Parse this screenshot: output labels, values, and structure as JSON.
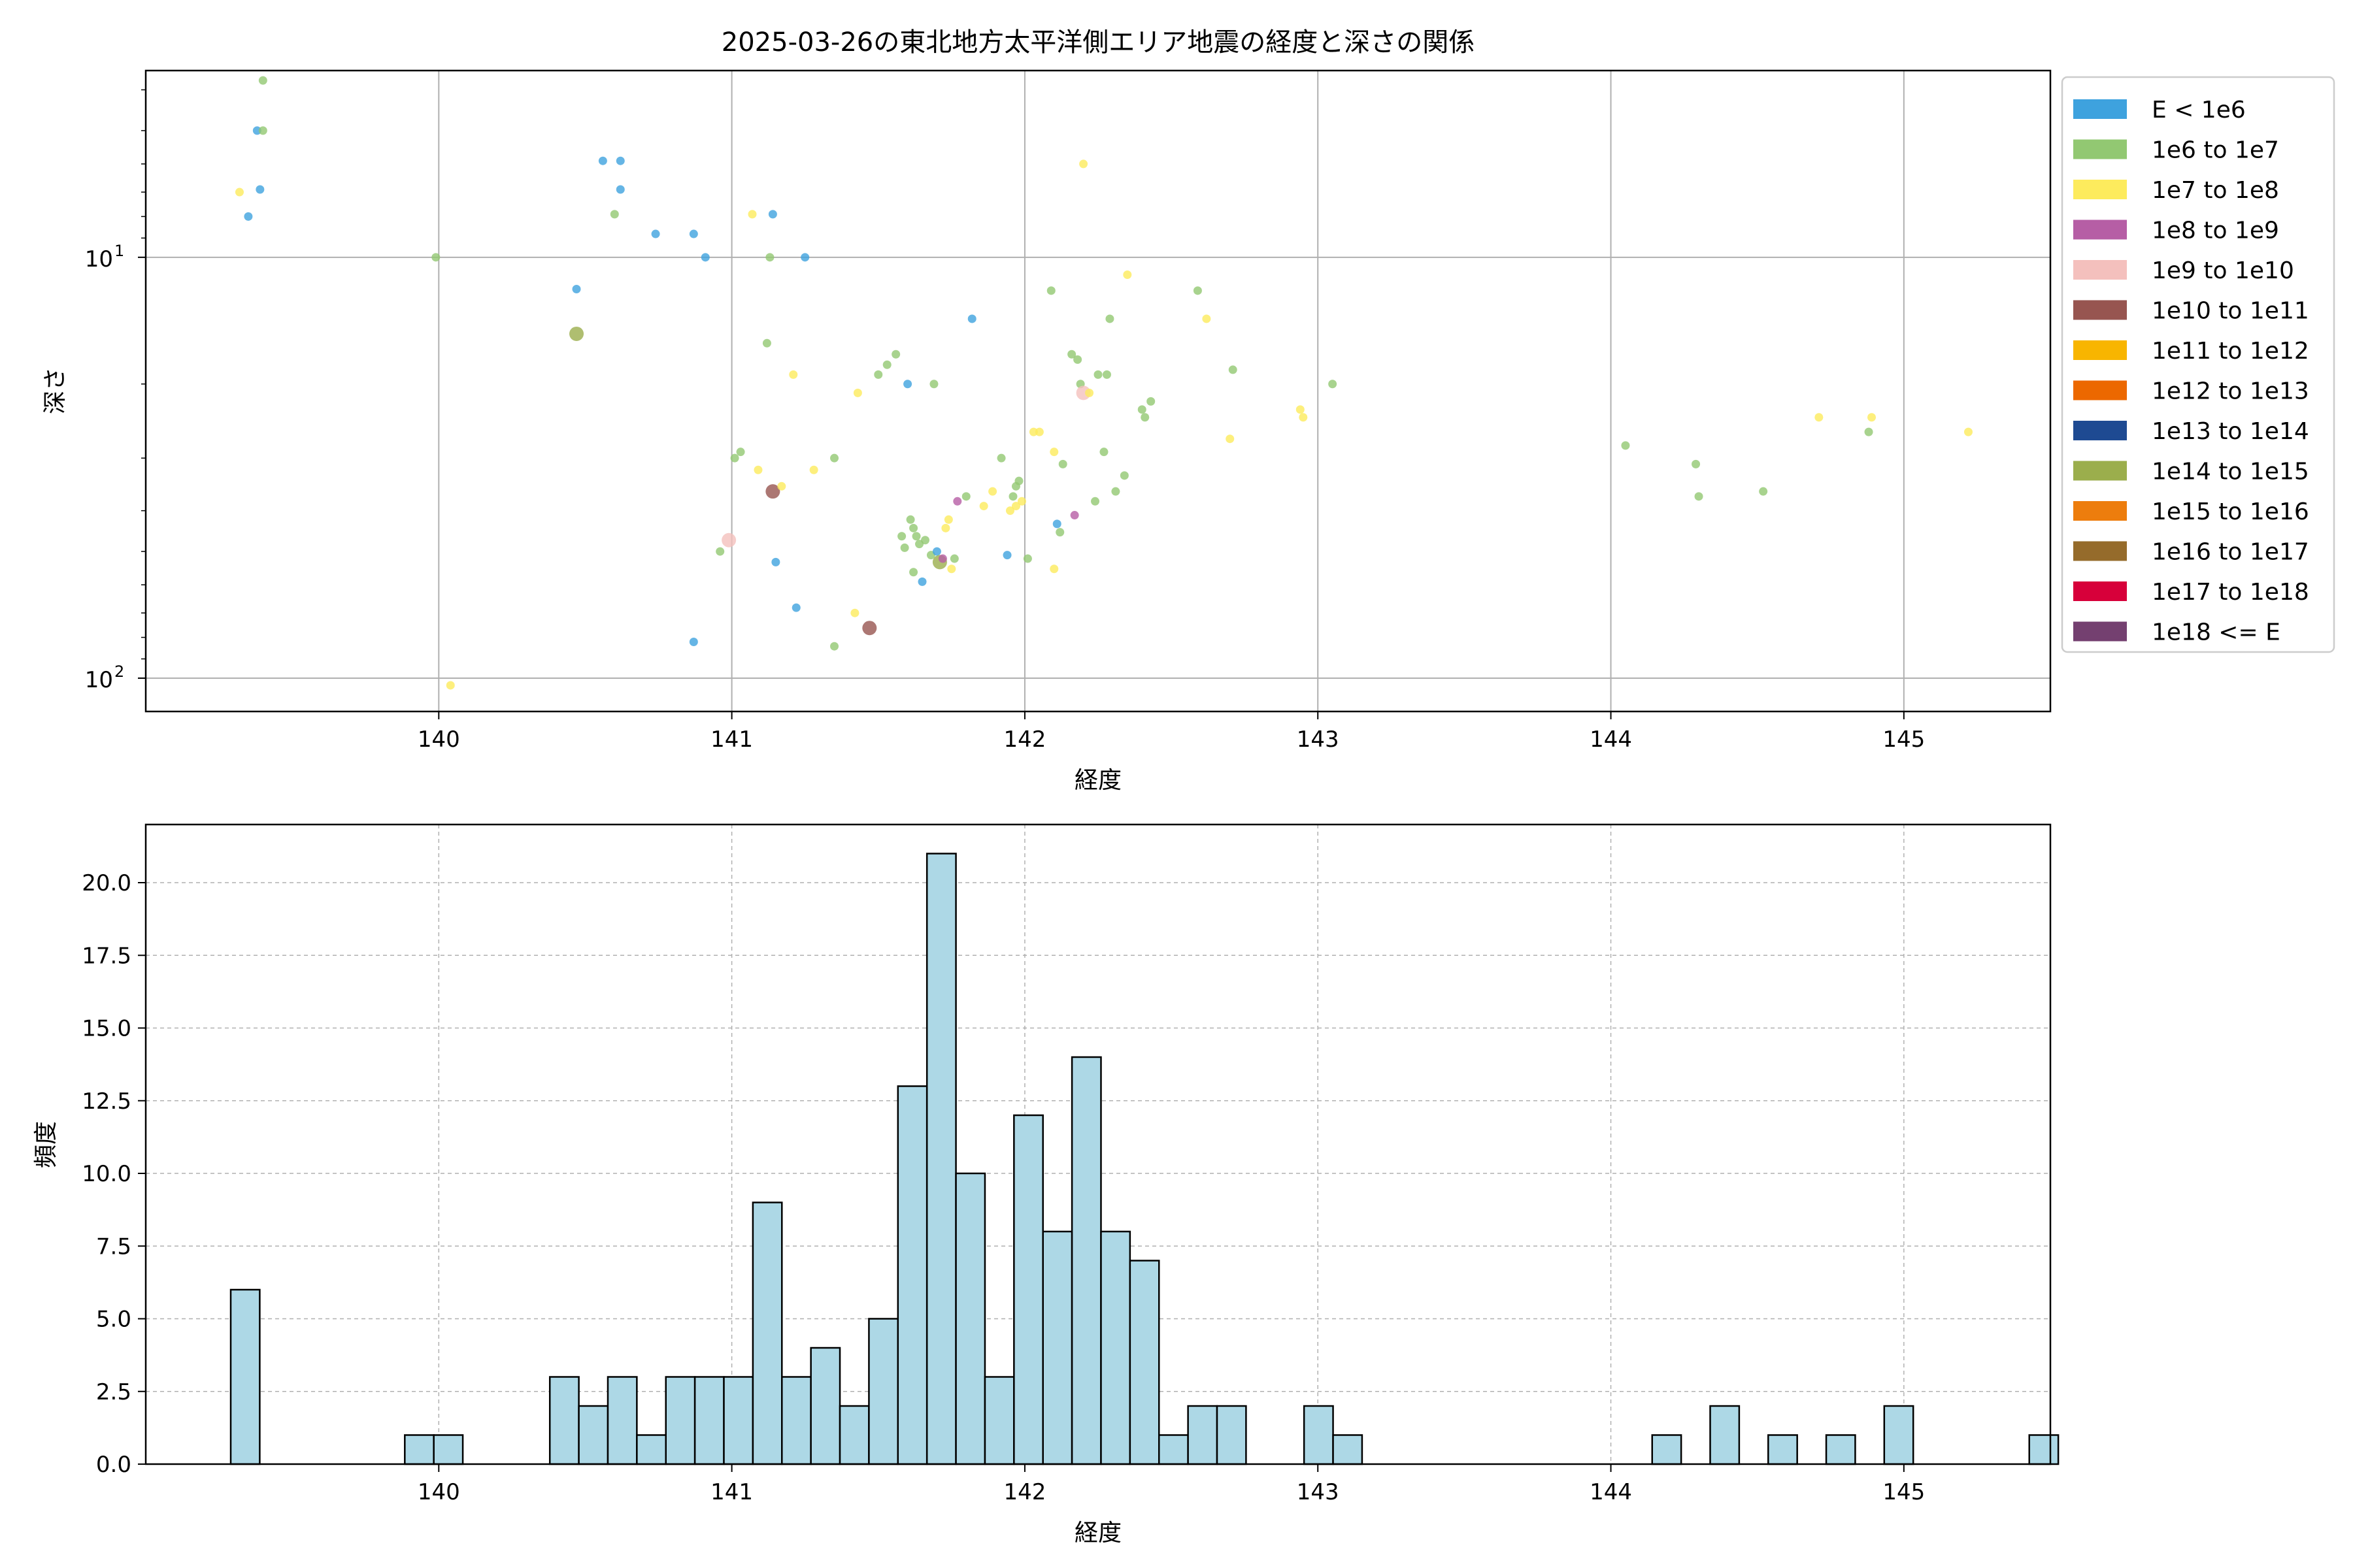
{
  "chart_data": [
    {
      "type": "scatter",
      "title": "2025-03-26の東北地方太平洋側エリア地震の経度と深さの関係",
      "xlabel": "経度",
      "ylabel": "深さ",
      "xlim": [
        139.0,
        145.5
      ],
      "ylim": [
        3.6,
        120
      ],
      "yscale": "log",
      "y_inverted": true,
      "xticks": [
        "140",
        "141",
        "142",
        "143",
        "144",
        "145"
      ],
      "yticks": [
        {
          "value": 10,
          "label": "10",
          "exp": "1"
        },
        {
          "value": 100,
          "label": "10",
          "exp": "2"
        }
      ],
      "grid": true,
      "legend_position": "right, outside top",
      "legend": [
        {
          "label": "E < 1e6",
          "color": "#3ea2de"
        },
        {
          "label": "1e6 to 1e7",
          "color": "#92c872"
        },
        {
          "label": "1e7 to 1e8",
          "color": "#fdeb5d"
        },
        {
          "label": "1e8 to 1e9",
          "color": "#b65ea5"
        },
        {
          "label": "1e9 to 1e10",
          "color": "#f4c0bd"
        },
        {
          "label": "1e10 to 1e11",
          "color": "#975550"
        },
        {
          "label": "1e11 to 1e12",
          "color": "#f8b500"
        },
        {
          "label": "1e12 to 1e13",
          "color": "#ec6800"
        },
        {
          "label": "1e13 to 1e14",
          "color": "#1e4a92"
        },
        {
          "label": "1e14 to 1e15",
          "color": "#9bae4c"
        },
        {
          "label": "1e15 to 1e16",
          "color": "#ed7d0d"
        },
        {
          "label": "1e16 to 1e17",
          "color": "#956b2b"
        },
        {
          "label": "1e17 to 1e18",
          "color": "#d7003a"
        },
        {
          "label": "1e18 <= E",
          "color": "#744070"
        }
      ],
      "points": [
        [
          139.32,
          7.0,
          2
        ],
        [
          139.35,
          8.0,
          0
        ],
        [
          139.38,
          5.0,
          0
        ],
        [
          139.39,
          6.9,
          0
        ],
        [
          139.4,
          3.8,
          1
        ],
        [
          139.4,
          5.0,
          1
        ],
        [
          139.99,
          10.0,
          1
        ],
        [
          140.04,
          104,
          2
        ],
        [
          140.47,
          11.9,
          0
        ],
        [
          140.47,
          15.2,
          9
        ],
        [
          140.56,
          5.9,
          0
        ],
        [
          140.6,
          7.9,
          1
        ],
        [
          140.62,
          5.9,
          0
        ],
        [
          140.62,
          6.9,
          0
        ],
        [
          140.74,
          8.8,
          0
        ],
        [
          140.87,
          8.8,
          0
        ],
        [
          140.87,
          82,
          0
        ],
        [
          140.91,
          10.0,
          0
        ],
        [
          140.96,
          50,
          1
        ],
        [
          140.99,
          47,
          4
        ],
        [
          141.01,
          30,
          1
        ],
        [
          141.03,
          29,
          1
        ],
        [
          141.07,
          7.9,
          2
        ],
        [
          141.09,
          32,
          2
        ],
        [
          141.12,
          16.0,
          1
        ],
        [
          141.13,
          10.0,
          1
        ],
        [
          141.14,
          7.9,
          0
        ],
        [
          141.14,
          36,
          5
        ],
        [
          141.15,
          53,
          0
        ],
        [
          141.17,
          35,
          2
        ],
        [
          141.21,
          19.0,
          2
        ],
        [
          141.22,
          68,
          0
        ],
        [
          141.25,
          10.0,
          0
        ],
        [
          141.28,
          32,
          2
        ],
        [
          141.35,
          30,
          1
        ],
        [
          141.35,
          84,
          1
        ],
        [
          141.42,
          70,
          2
        ],
        [
          141.43,
          21,
          2
        ],
        [
          141.47,
          76,
          5
        ],
        [
          141.5,
          19.0,
          1
        ],
        [
          141.53,
          18.0,
          1
        ],
        [
          141.56,
          17.0,
          1
        ],
        [
          141.58,
          46,
          1
        ],
        [
          141.59,
          49,
          1
        ],
        [
          141.6,
          20,
          0
        ],
        [
          141.61,
          42,
          1
        ],
        [
          141.62,
          44,
          1
        ],
        [
          141.62,
          56,
          1
        ],
        [
          141.63,
          46,
          1
        ],
        [
          141.64,
          48,
          1
        ],
        [
          141.65,
          59,
          0
        ],
        [
          141.66,
          47,
          1
        ],
        [
          141.68,
          51,
          1
        ],
        [
          141.69,
          20,
          1
        ],
        [
          141.7,
          50,
          0
        ],
        [
          141.71,
          53,
          9
        ],
        [
          141.72,
          52,
          3
        ],
        [
          141.73,
          44,
          2
        ],
        [
          141.74,
          42,
          2
        ],
        [
          141.75,
          55,
          2
        ],
        [
          141.76,
          52,
          1
        ],
        [
          141.77,
          38,
          3
        ],
        [
          141.8,
          37,
          1
        ],
        [
          141.82,
          14.0,
          0
        ],
        [
          141.86,
          39,
          2
        ],
        [
          141.89,
          36,
          2
        ],
        [
          141.92,
          30,
          1
        ],
        [
          141.94,
          51,
          0
        ],
        [
          141.95,
          40,
          2
        ],
        [
          141.96,
          37,
          1
        ],
        [
          141.97,
          39,
          2
        ],
        [
          141.97,
          35,
          1
        ],
        [
          141.98,
          34,
          1
        ],
        [
          141.99,
          38,
          2
        ],
        [
          142.01,
          52,
          1
        ],
        [
          142.03,
          26,
          2
        ],
        [
          142.05,
          26,
          2
        ],
        [
          142.09,
          12.0,
          1
        ],
        [
          142.1,
          29,
          2
        ],
        [
          142.1,
          55,
          2
        ],
        [
          142.11,
          43,
          0
        ],
        [
          142.12,
          45,
          1
        ],
        [
          142.13,
          31,
          1
        ],
        [
          142.16,
          17.0,
          1
        ],
        [
          142.17,
          41,
          3
        ],
        [
          142.18,
          17.5,
          1
        ],
        [
          142.19,
          20,
          1
        ],
        [
          142.2,
          21,
          4
        ],
        [
          142.2,
          6.0,
          2
        ],
        [
          142.22,
          21,
          2
        ],
        [
          142.24,
          38,
          1
        ],
        [
          142.25,
          19,
          1
        ],
        [
          142.27,
          29,
          1
        ],
        [
          142.28,
          19,
          1
        ],
        [
          142.29,
          14.0,
          1
        ],
        [
          142.31,
          36,
          1
        ],
        [
          142.34,
          33,
          1
        ],
        [
          142.35,
          11.0,
          2
        ],
        [
          142.4,
          23,
          1
        ],
        [
          142.41,
          24,
          1
        ],
        [
          142.43,
          22,
          1
        ],
        [
          142.59,
          12.0,
          1
        ],
        [
          142.62,
          14.0,
          2
        ],
        [
          142.7,
          27,
          2
        ],
        [
          142.71,
          18.5,
          1
        ],
        [
          142.94,
          23,
          2
        ],
        [
          142.95,
          24,
          2
        ],
        [
          143.05,
          20,
          1
        ],
        [
          144.05,
          28,
          1
        ],
        [
          144.29,
          31,
          1
        ],
        [
          144.3,
          37,
          1
        ],
        [
          144.52,
          36,
          1
        ],
        [
          144.71,
          24,
          2
        ],
        [
          144.88,
          26,
          1
        ],
        [
          144.89,
          24,
          2
        ],
        [
          145.22,
          26,
          2
        ]
      ]
    },
    {
      "type": "bar",
      "title": "",
      "xlabel": "経度",
      "ylabel": "頻度",
      "xlim": [
        139.0,
        145.5
      ],
      "ylim": [
        0,
        22
      ],
      "xticks": [
        "140",
        "141",
        "142",
        "143",
        "144",
        "145"
      ],
      "yticks": [
        "0.0",
        "2.5",
        "5.0",
        "7.5",
        "10.0",
        "12.5",
        "15.0",
        "17.5",
        "20.0"
      ],
      "grid": true,
      "bar_color": "#add8e6",
      "bin_start": 139.29,
      "bin_width": 0.099,
      "values": [
        6,
        0,
        0,
        0,
        0,
        0,
        1,
        1,
        0,
        0,
        0,
        3,
        2,
        3,
        1,
        3,
        3,
        3,
        9,
        3,
        4,
        2,
        5,
        13,
        21,
        10,
        3,
        12,
        8,
        14,
        8,
        7,
        1,
        2,
        2,
        0,
        0,
        2,
        1,
        0,
        0,
        0,
        0,
        0,
        0,
        0,
        0,
        0,
        0,
        1,
        0,
        2,
        0,
        1,
        0,
        1,
        0,
        2,
        0,
        0,
        0,
        0,
        1
      ]
    }
  ]
}
